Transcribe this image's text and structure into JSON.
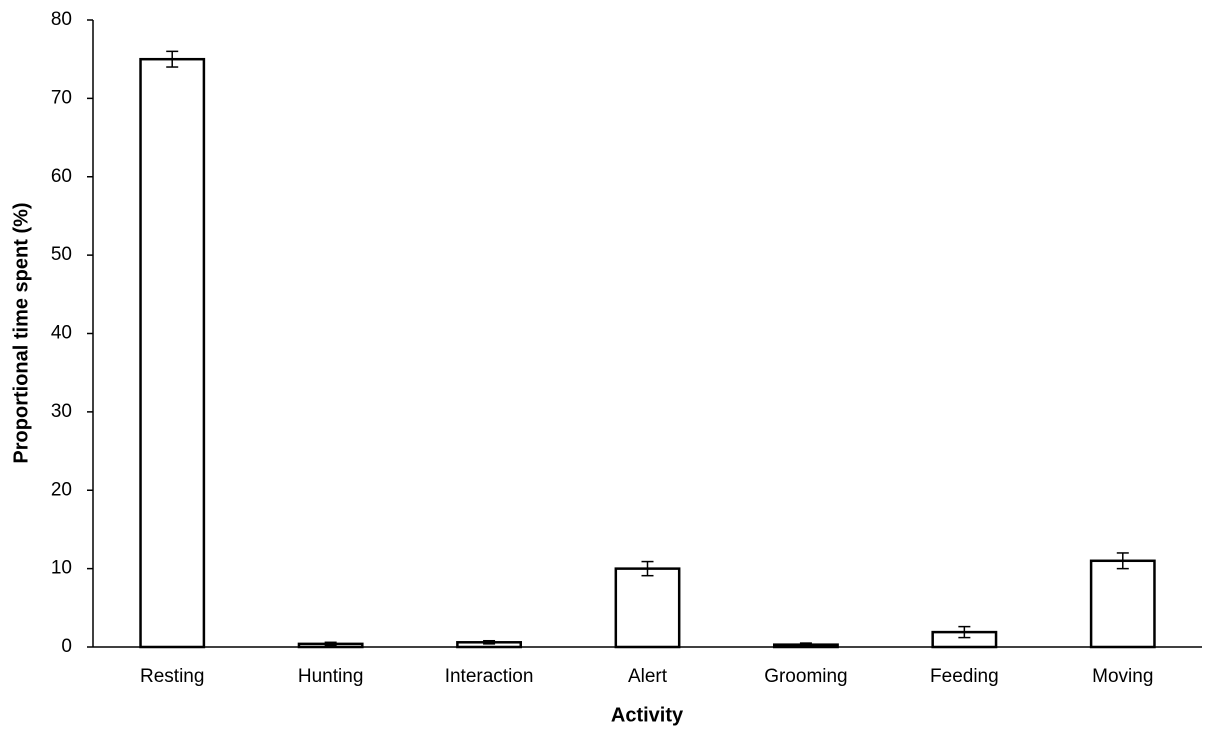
{
  "chart_data": {
    "type": "bar",
    "xlabel": "Activity",
    "ylabel": "Proportional time spent (%)",
    "categories": [
      "Resting",
      "Hunting",
      "Interaction",
      "Alert",
      "Grooming",
      "Feeding",
      "Moving"
    ],
    "values": [
      75,
      0.4,
      0.6,
      10,
      0.3,
      1.9,
      11
    ],
    "errors": [
      1,
      0.2,
      0.2,
      0.9,
      0.2,
      0.7,
      1
    ],
    "color": "#ffffff",
    "edgecolor": "#000000",
    "ylim": [
      0,
      80
    ],
    "yticks": [
      0,
      10,
      20,
      30,
      40,
      50,
      60,
      70,
      80
    ],
    "grid": false
  }
}
